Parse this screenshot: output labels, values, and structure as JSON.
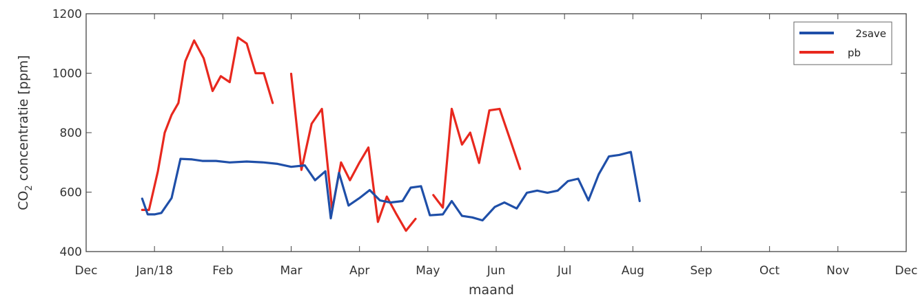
{
  "chart_data": {
    "type": "line",
    "title": "",
    "xlabel": "maand",
    "ylabel": "CO",
    "ylabel_sub": "2",
    "ylabel_rest": " concentratie [ppm]",
    "ylim": [
      400,
      1200
    ],
    "xlim": [
      0,
      12
    ],
    "yticks": [
      400,
      600,
      800,
      1000,
      1200
    ],
    "xticks": [
      {
        "label": "Dec",
        "x": 0
      },
      {
        "label": "Jan/18",
        "x": 1
      },
      {
        "label": "Feb",
        "x": 2
      },
      {
        "label": "Mar",
        "x": 3
      },
      {
        "label": "Apr",
        "x": 4
      },
      {
        "label": "May",
        "x": 5
      },
      {
        "label": "Jun",
        "x": 6
      },
      {
        "label": "Jul",
        "x": 7
      },
      {
        "label": "Aug",
        "x": 8
      },
      {
        "label": "Sep",
        "x": 9
      },
      {
        "label": "Oct",
        "x": 10
      },
      {
        "label": "Nov",
        "x": 11
      },
      {
        "label": "Dec",
        "x": 12
      }
    ],
    "grid": false,
    "legend_position": "top-right",
    "series": [
      {
        "name": "2save",
        "color": "#1f4fa8",
        "segments": [
          [
            [
              0.82,
              578
            ],
            [
              0.9,
              525
            ],
            [
              1.0,
              525
            ],
            [
              1.1,
              530
            ],
            [
              1.25,
              580
            ],
            [
              1.38,
              712
            ],
            [
              1.55,
              710
            ],
            [
              1.7,
              705
            ],
            [
              1.9,
              705
            ],
            [
              2.1,
              700
            ],
            [
              2.35,
              703
            ],
            [
              2.6,
              700
            ],
            [
              2.8,
              695
            ],
            [
              3.0,
              685
            ],
            [
              3.2,
              690
            ],
            [
              3.35,
              640
            ],
            [
              3.5,
              670
            ],
            [
              3.58,
              512
            ],
            [
              3.7,
              665
            ],
            [
              3.84,
              555
            ],
            [
              4.0,
              580
            ],
            [
              4.15,
              607
            ],
            [
              4.3,
              572
            ],
            [
              4.45,
              565
            ],
            [
              4.63,
              570
            ],
            [
              4.75,
              615
            ],
            [
              4.9,
              620
            ],
            [
              5.03,
              522
            ],
            [
              5.22,
              525
            ],
            [
              5.35,
              570
            ],
            [
              5.5,
              520
            ],
            [
              5.65,
              515
            ],
            [
              5.8,
              505
            ],
            [
              5.98,
              550
            ],
            [
              6.12,
              565
            ],
            [
              6.3,
              545
            ],
            [
              6.45,
              598
            ],
            [
              6.6,
              605
            ],
            [
              6.75,
              598
            ],
            [
              6.9,
              605
            ],
            [
              7.05,
              637
            ],
            [
              7.2,
              645
            ],
            [
              7.35,
              572
            ],
            [
              7.5,
              660
            ],
            [
              7.65,
              720
            ],
            [
              7.8,
              725
            ],
            [
              7.97,
              735
            ],
            [
              8.1,
              570
            ]
          ]
        ]
      },
      {
        "name": "pb",
        "color": "#e8281e",
        "segments": [
          [
            [
              0.82,
              540
            ],
            [
              0.92,
              540
            ],
            [
              1.05,
              670
            ],
            [
              1.15,
              800
            ],
            [
              1.25,
              860
            ],
            [
              1.35,
              900
            ],
            [
              1.45,
              1040
            ],
            [
              1.58,
              1110
            ],
            [
              1.72,
              1050
            ],
            [
              1.85,
              940
            ],
            [
              1.97,
              990
            ],
            [
              2.1,
              970
            ],
            [
              2.22,
              1120
            ],
            [
              2.35,
              1100
            ],
            [
              2.48,
              1000
            ],
            [
              2.6,
              1000
            ],
            [
              2.73,
              900
            ]
          ],
          [
            [
              3.0,
              998
            ],
            [
              3.15,
              675
            ],
            [
              3.3,
              830
            ],
            [
              3.45,
              880
            ],
            [
              3.6,
              540
            ],
            [
              3.73,
              700
            ],
            [
              3.86,
              640
            ],
            [
              4.0,
              700
            ],
            [
              4.13,
              750
            ],
            [
              4.27,
              500
            ],
            [
              4.4,
              585
            ],
            [
              4.53,
              530
            ],
            [
              4.68,
              470
            ],
            [
              4.82,
              510
            ]
          ],
          [
            [
              5.08,
              590
            ],
            [
              5.22,
              548
            ],
            [
              5.35,
              880
            ],
            [
              5.5,
              760
            ],
            [
              5.62,
              800
            ],
            [
              5.75,
              698
            ],
            [
              5.9,
              875
            ],
            [
              6.05,
              880
            ],
            [
              6.2,
              780
            ],
            [
              6.35,
              678
            ]
          ]
        ]
      }
    ]
  }
}
